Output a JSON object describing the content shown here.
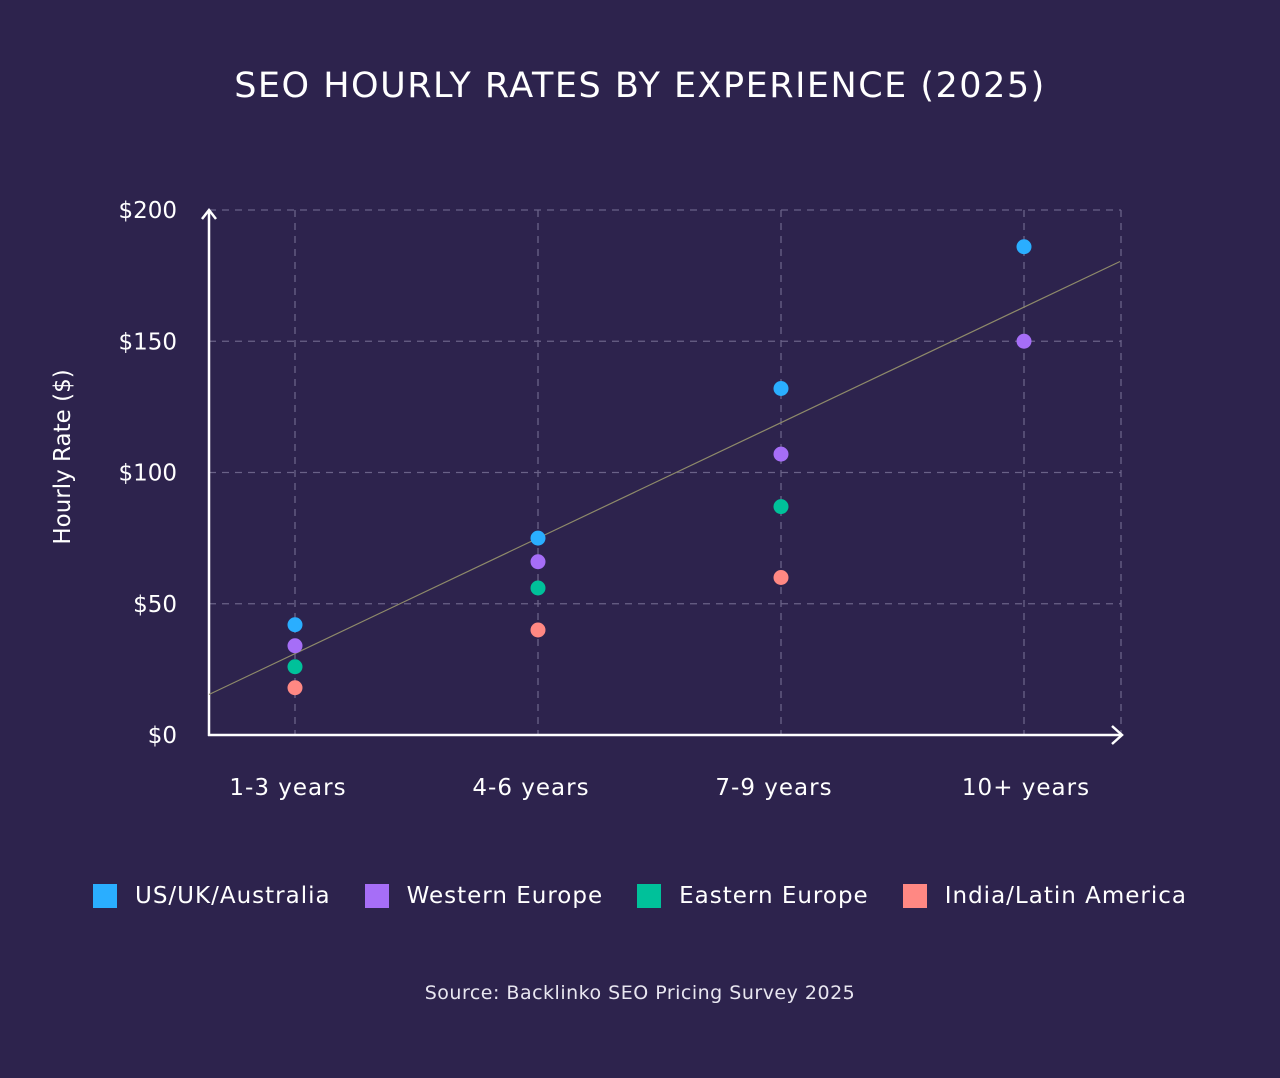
{
  "chart_data": {
    "type": "scatter",
    "title": "SEO HOURLY RATES BY EXPERIENCE (2025)",
    "xlabel": "",
    "ylabel": "Hourly Rate ($)",
    "categories": [
      "1-3 years",
      "4-6 years",
      "7-9 years",
      "10+ years"
    ],
    "ylim": [
      0,
      200
    ],
    "yticks": [
      0,
      50,
      100,
      150,
      200
    ],
    "ytick_labels": [
      "$0",
      "$50",
      "$100",
      "$150",
      "$200"
    ],
    "grid": true,
    "legend_position": "bottom",
    "series": [
      {
        "name": "US/UK/Australia",
        "color": "#2aaeff",
        "values": [
          42,
          75,
          132,
          186
        ]
      },
      {
        "name": "Western Europe",
        "color": "#a66ef7",
        "values": [
          34,
          66,
          107,
          150
        ]
      },
      {
        "name": "Eastern Europe",
        "color": "#00c19a",
        "values": [
          26,
          56,
          87,
          null
        ]
      },
      {
        "name": "India/Latin America",
        "color": "#ff8883",
        "values": [
          18,
          40,
          60,
          null
        ]
      }
    ],
    "trendline": {
      "color": "#8e8a6a",
      "value_at_first_category": 31,
      "slope_per_category": 44
    },
    "source": "Source: Backlinko SEO Pricing Survey 2025"
  }
}
